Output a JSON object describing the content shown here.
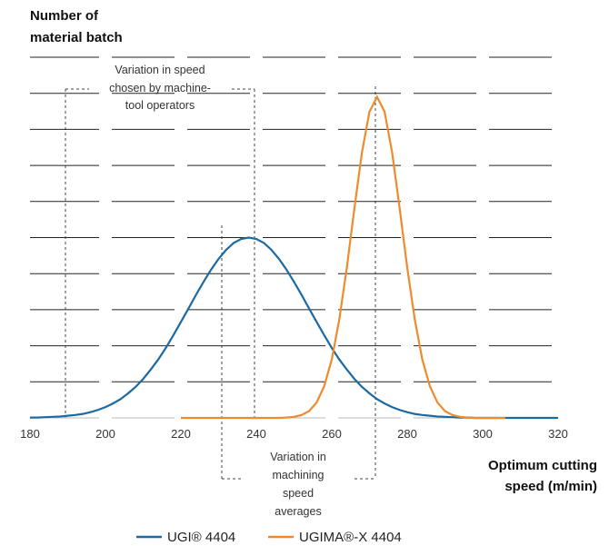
{
  "chart_data": {
    "type": "line",
    "ylabel": [
      "Number of",
      "material batch"
    ],
    "xlabel": [
      "Optimum cutting",
      "speed (m/min)"
    ],
    "annotations": [
      [
        "Variation in speed",
        "chosen by machine-",
        "tool operators"
      ],
      [
        "Variation in",
        "machining",
        "speed",
        "averages"
      ]
    ],
    "x": [
      180,
      182,
      184,
      186,
      188,
      190,
      192,
      194,
      196,
      198,
      200,
      202,
      204,
      206,
      208,
      210,
      212,
      214,
      216,
      218,
      220,
      222,
      224,
      226,
      228,
      230,
      232,
      234,
      236,
      238,
      240,
      242,
      244,
      246,
      248,
      250,
      252,
      254,
      256,
      258,
      260,
      262,
      264,
      266,
      268,
      270,
      272,
      274,
      276,
      278,
      280,
      282,
      284,
      286,
      288,
      290,
      292,
      294,
      296,
      298,
      300,
      302,
      304,
      306,
      308,
      310,
      312,
      314,
      316,
      318,
      320
    ],
    "series": [
      {
        "name": "UGI® 4404",
        "color": "#1b6aa2",
        "values": [
          0.01,
          0.01,
          0.02,
          0.03,
          0.04,
          0.06,
          0.08,
          0.11,
          0.16,
          0.22,
          0.3,
          0.4,
          0.52,
          0.68,
          0.86,
          1.08,
          1.34,
          1.62,
          1.94,
          2.29,
          2.66,
          3.03,
          3.41,
          3.77,
          4.11,
          4.41,
          4.66,
          4.85,
          4.96,
          5,
          4.96,
          4.85,
          4.66,
          4.41,
          4.11,
          3.77,
          3.41,
          3.03,
          2.66,
          2.29,
          1.94,
          1.62,
          1.34,
          1.08,
          0.86,
          0.68,
          0.52,
          0.4,
          0.3,
          0.22,
          0.16,
          0.11,
          0.08,
          0.06,
          0.04,
          0.03,
          0.02,
          0.01,
          0.01,
          0,
          0,
          0,
          0,
          0,
          0,
          0,
          0,
          0,
          0,
          0,
          0
        ]
      },
      {
        "name": "UGIMA®-X 4404",
        "color": "#f08a2c",
        "values": [
          null,
          null,
          null,
          null,
          null,
          null,
          null,
          null,
          null,
          null,
          null,
          null,
          null,
          null,
          null,
          null,
          null,
          null,
          null,
          null,
          0,
          0,
          0,
          0,
          0,
          0,
          0,
          0,
          0,
          0,
          0,
          0,
          0,
          0,
          0.01,
          0.03,
          0.08,
          0.19,
          0.43,
          0.88,
          1.62,
          2.73,
          4.17,
          5.81,
          7.36,
          8.49,
          8.9,
          8.49,
          7.36,
          5.81,
          4.17,
          2.73,
          1.62,
          0.88,
          0.43,
          0.19,
          0.08,
          0.03,
          0.01,
          0,
          0,
          0,
          0,
          0,
          null,
          null,
          null,
          null,
          null,
          null,
          null
        ]
      }
    ],
    "xlim": [
      180,
      320
    ],
    "xticks": [
      180,
      200,
      220,
      240,
      260,
      280,
      300,
      320
    ],
    "ylim": [
      0,
      10
    ],
    "yticks": [
      0,
      1,
      2,
      3,
      4,
      5,
      6,
      7,
      8,
      9,
      10
    ],
    "grid": true
  }
}
